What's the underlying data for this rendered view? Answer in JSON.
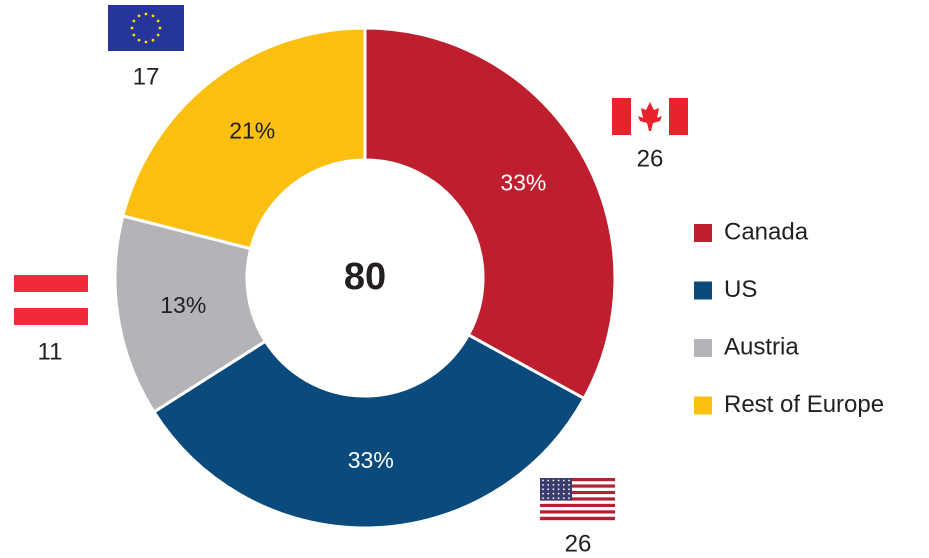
{
  "chart_data": {
    "type": "donut",
    "categories": [
      "Canada",
      "US",
      "Austria",
      "Rest of Europe"
    ],
    "values": [
      33,
      33,
      13,
      21
    ],
    "value_labels": [
      "33%",
      "33%",
      "13%",
      "21%"
    ],
    "counts": [
      26,
      26,
      11,
      17
    ],
    "center_label": 80,
    "colors": [
      "#be1e2d",
      "#0b4a7d",
      "#b3b4b7",
      "#fbbf12"
    ],
    "label_colors": [
      "#ffffff",
      "#ffffff",
      "#231f20",
      "#231f20"
    ],
    "legend": "right"
  }
}
